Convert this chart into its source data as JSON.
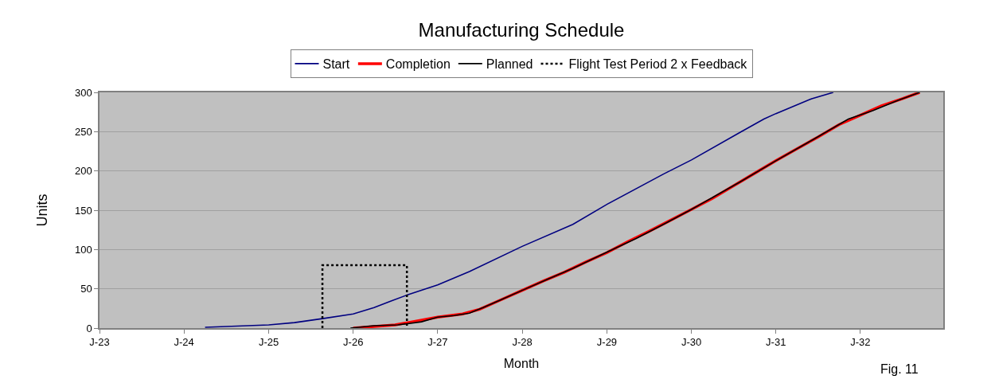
{
  "chart_data": {
    "type": "line",
    "title": "Manufacturing Schedule",
    "xlabel": "Month",
    "ylabel": "Units",
    "annotations": [
      "Fig. 11"
    ],
    "xlim": [
      "2023-01-01",
      "2032-12-24"
    ],
    "xticks": [
      {
        "value": "2023-01-01",
        "label": "J-23"
      },
      {
        "value": "2024-01-01",
        "label": "J-24"
      },
      {
        "value": "2025-01-01",
        "label": "J-25"
      },
      {
        "value": "2026-01-01",
        "label": "J-26"
      },
      {
        "value": "2027-01-01",
        "label": "J-27"
      },
      {
        "value": "2028-01-01",
        "label": "J-28"
      },
      {
        "value": "2029-01-01",
        "label": "J-29"
      },
      {
        "value": "2030-01-01",
        "label": "J-30"
      },
      {
        "value": "2031-01-01",
        "label": "J-31"
      },
      {
        "value": "2032-01-01",
        "label": "J-32"
      }
    ],
    "ylim": [
      0,
      300
    ],
    "yticks": [
      0,
      50,
      100,
      150,
      200,
      250,
      300
    ],
    "grid": "y",
    "legend": "top",
    "series": [
      {
        "name": "Start",
        "color": "#000080",
        "x": [
          "2024-04-01",
          "2025-01-01",
          "2025-04-22",
          "2025-08-21",
          "2026-01-01",
          "2026-04-01",
          "2026-06-09",
          "2026-08-21",
          "2027-01-01",
          "2027-05-18",
          "2028-01-01",
          "2028-08-07",
          "2029-01-04",
          "2029-09-02",
          "2030-01-01",
          "2030-07-30",
          "2030-11-10",
          "2031-01-01",
          "2031-06-05",
          "2031-09-06"
        ],
        "values": [
          1,
          4,
          7,
          12,
          18,
          26,
          34,
          42,
          55,
          72,
          104,
          132,
          158,
          196,
          214,
          249,
          266,
          273,
          292,
          300
        ]
      },
      {
        "name": "Completion",
        "color": "#ff0000",
        "x": [
          "2026-01-01",
          "2026-07-01",
          "2027-01-01",
          "2027-04-19",
          "2027-07-01",
          "2027-10-01",
          "2028-01-01",
          "2028-04-01",
          "2028-07-01",
          "2028-10-01",
          "2029-01-01",
          "2029-04-01",
          "2029-07-01",
          "2029-10-01",
          "2030-01-01",
          "2030-04-01",
          "2030-07-01",
          "2030-10-01",
          "2031-01-01",
          "2031-04-01",
          "2031-07-01",
          "2031-10-01",
          "2032-01-01",
          "2032-04-01",
          "2032-07-01",
          "2032-09-13"
        ],
        "values": [
          0,
          4,
          14,
          18,
          24,
          36,
          48,
          60,
          71,
          84,
          96,
          110,
          123,
          137,
          151,
          165,
          181,
          197,
          213,
          228,
          243,
          259,
          271,
          283,
          292,
          300
        ]
      },
      {
        "name": "Planned",
        "color": "#000000",
        "x": [
          "2025-12-20",
          "2026-04-01",
          "2026-07-12",
          "2026-10-23",
          "2027-01-01",
          "2027-03-13",
          "2027-05-18",
          "2027-07-16",
          "2027-10-01",
          "2028-01-01",
          "2028-04-19",
          "2028-08-07",
          "2029-01-04",
          "2029-05-07",
          "2029-09-02",
          "2030-01-01",
          "2030-04-19",
          "2030-07-30",
          "2031-01-01",
          "2031-06-05",
          "2031-11-10",
          "2032-02-25",
          "2032-06-05",
          "2032-09-13"
        ],
        "values": [
          0,
          3,
          4,
          8,
          14,
          16,
          19,
          26,
          36,
          48,
          62,
          76,
          97,
          114,
          132,
          151,
          169,
          186,
          213,
          239,
          266,
          277,
          289,
          300
        ]
      },
      {
        "name": "Flight Test Period 2 x Feedback",
        "color": "#000000",
        "line_style": "dotted",
        "x": [
          "2025-08-21",
          "2025-08-21",
          "2026-08-21",
          "2026-08-21"
        ],
        "values": [
          0,
          80,
          80,
          0
        ]
      }
    ]
  }
}
